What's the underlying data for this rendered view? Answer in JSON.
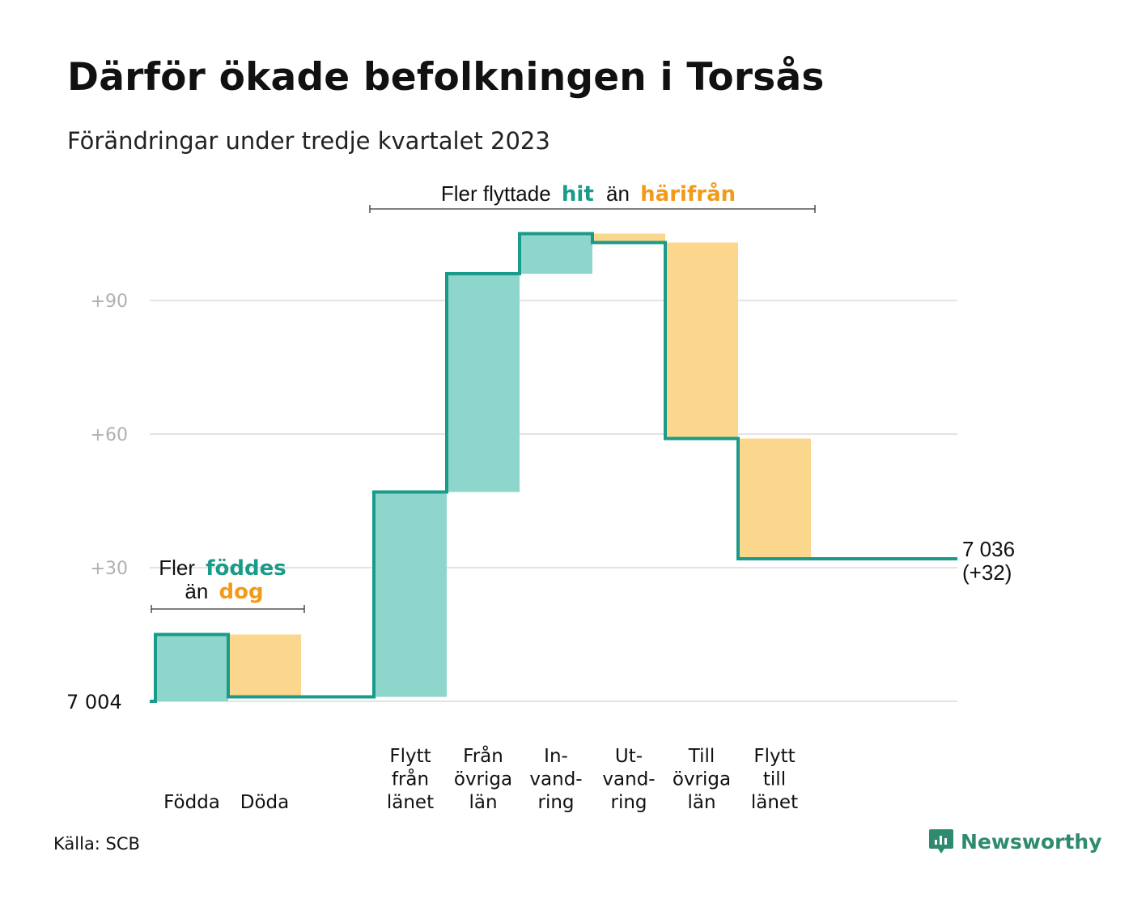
{
  "title": "Därför ökade befolkningen i Torsås",
  "subtitle": "Förändringar under tredje kvartalet 2023",
  "source": "Källa: SCB",
  "brand": {
    "name": "Newsworthy",
    "icon": "newsworthy-logo-icon"
  },
  "colors": {
    "increase": "#8ed5cc",
    "decrease": "#fbd68d",
    "line": "#1a9a88",
    "grid": "#e3e3e3",
    "tick": "#b0b0b0",
    "accent_green": "#1a9a88",
    "accent_orange": "#f29b1a"
  },
  "chart_data": {
    "type": "waterfall",
    "start_label": "7  004",
    "start_value": 0,
    "end_label_line1": "7 036",
    "end_label_line2": "(+32)",
    "end_value": 32,
    "y_ticks": [
      {
        "value": 30,
        "label": "+30"
      },
      {
        "value": 60,
        "label": "+60"
      },
      {
        "value": 90,
        "label": "+90"
      }
    ],
    "ylim": [
      0,
      105
    ],
    "grid": true,
    "steps": [
      {
        "label": [
          "",
          "",
          "Födda"
        ],
        "delta": 15
      },
      {
        "label": [
          "",
          "",
          "Döda"
        ],
        "delta": -14
      },
      {
        "label": [
          "Flytt",
          "från",
          "länet"
        ],
        "delta": 46
      },
      {
        "label": [
          "Från",
          "övriga",
          "län"
        ],
        "delta": 49
      },
      {
        "label": [
          "In-",
          "vand-",
          "ring"
        ],
        "delta": 9
      },
      {
        "label": [
          "Ut-",
          "vand-",
          "ring"
        ],
        "delta": -2
      },
      {
        "label": [
          "Till",
          "övriga",
          "län"
        ],
        "delta": -44
      },
      {
        "label": [
          "Flytt",
          "till",
          "länet"
        ],
        "delta": -27
      }
    ],
    "annotations": {
      "births": {
        "line1_a": "Fler",
        "line1_b": "föddes",
        "line2_a": "än",
        "line2_b": "dog"
      },
      "moves": {
        "a": "Fler flyttade",
        "b": "hit",
        "c": "än",
        "d": "härifrån"
      }
    }
  }
}
